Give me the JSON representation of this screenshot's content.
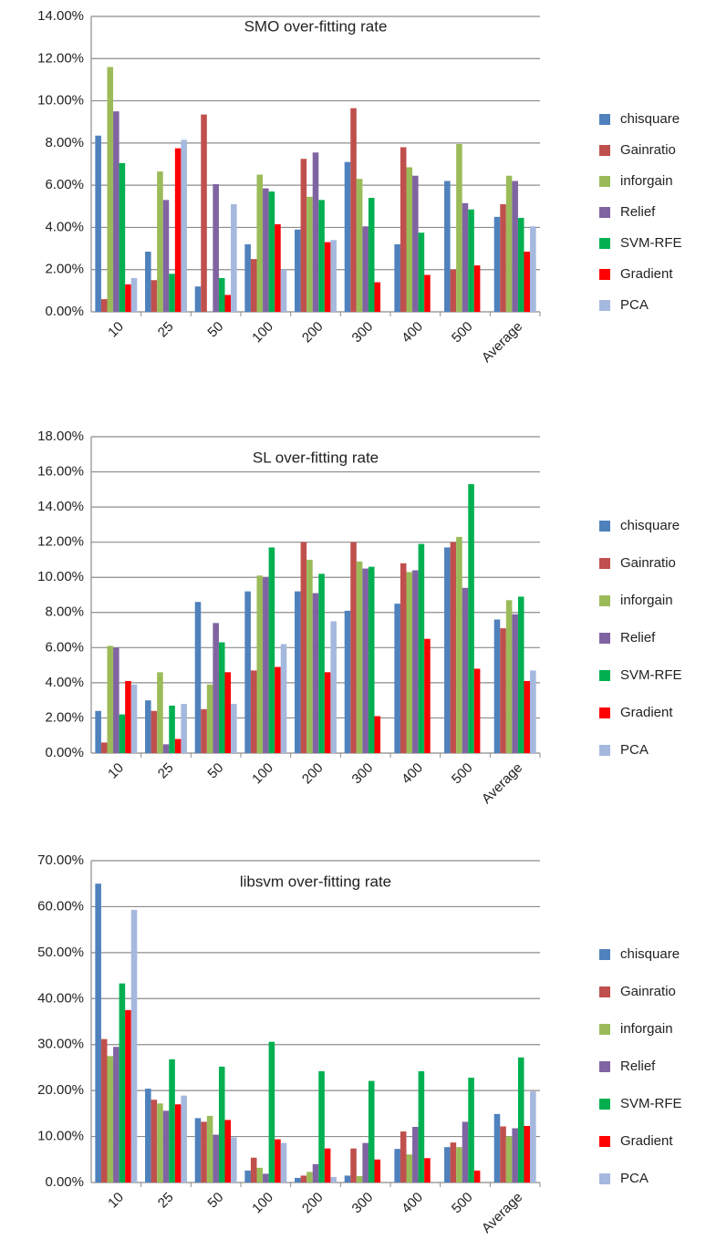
{
  "chart_data": [
    {
      "type": "bar",
      "title": "SMO over-fitting rate",
      "categories": [
        "10",
        "25",
        "50",
        "100",
        "200",
        "300",
        "400",
        "500",
        "Average"
      ],
      "series": [
        {
          "name": "chisquare",
          "color": "#4f81bd",
          "values": [
            8.35,
            2.85,
            1.2,
            3.2,
            3.9,
            7.1,
            3.2,
            6.2,
            4.5
          ]
        },
        {
          "name": "Gainratio",
          "color": "#c0504d",
          "values": [
            0.6,
            1.5,
            9.35,
            2.5,
            7.25,
            9.65,
            7.8,
            2.0,
            5.1
          ]
        },
        {
          "name": "inforgain",
          "color": "#9bbb59",
          "values": [
            11.6,
            6.65,
            0,
            6.5,
            5.45,
            6.3,
            6.85,
            7.95,
            6.45
          ]
        },
        {
          "name": "Relief",
          "color": "#8064a2",
          "values": [
            9.5,
            5.3,
            6.05,
            5.85,
            7.55,
            4.05,
            6.45,
            5.15,
            6.2
          ]
        },
        {
          "name": "SVM-RFE",
          "color": "#00b050",
          "values": [
            7.05,
            1.8,
            1.6,
            5.7,
            5.3,
            5.4,
            3.75,
            4.85,
            4.45
          ]
        },
        {
          "name": "Gradient",
          "color": "#ff0000",
          "values": [
            1.3,
            7.75,
            0.8,
            4.15,
            3.3,
            1.4,
            1.75,
            2.2,
            2.85
          ]
        },
        {
          "name": "PCA",
          "color": "#a5b8de",
          "values": [
            1.6,
            8.15,
            5.1,
            2.0,
            3.4,
            0,
            0,
            0,
            4.05
          ]
        }
      ],
      "ylim": [
        0,
        14
      ],
      "yticks": [
        {
          "value": 0,
          "label": "0.00%"
        },
        {
          "value": 2,
          "label": "2.00%"
        },
        {
          "value": 4,
          "label": "4.00%"
        },
        {
          "value": 6,
          "label": "6.00%"
        },
        {
          "value": 8,
          "label": "8.00%"
        },
        {
          "value": 10,
          "label": "10.00%"
        },
        {
          "value": 12,
          "label": "12.00%"
        },
        {
          "value": 14,
          "label": "14.00%"
        }
      ],
      "grid": true,
      "legend": "right"
    },
    {
      "type": "bar",
      "title": "SL  over-fitting rate",
      "categories": [
        "10",
        "25",
        "50",
        "100",
        "200",
        "300",
        "400",
        "500",
        "Average"
      ],
      "series": [
        {
          "name": "chisquare",
          "color": "#4f81bd",
          "values": [
            2.4,
            3.0,
            8.6,
            9.2,
            9.2,
            8.1,
            8.5,
            11.7,
            7.6
          ]
        },
        {
          "name": "Gainratio",
          "color": "#c0504d",
          "values": [
            0.6,
            2.4,
            2.5,
            4.7,
            12.0,
            12.0,
            10.8,
            12.0,
            7.1
          ]
        },
        {
          "name": "inforgain",
          "color": "#9bbb59",
          "values": [
            6.1,
            4.6,
            3.9,
            10.1,
            11.0,
            10.9,
            10.3,
            12.3,
            8.7
          ]
        },
        {
          "name": "Relief",
          "color": "#8064a2",
          "values": [
            6.0,
            0.5,
            7.4,
            10.0,
            9.1,
            10.5,
            10.4,
            9.4,
            7.9
          ]
        },
        {
          "name": "SVM-RFE",
          "color": "#00b050",
          "values": [
            2.2,
            2.7,
            6.3,
            11.7,
            10.2,
            10.6,
            11.9,
            15.3,
            8.9
          ]
        },
        {
          "name": "Gradient",
          "color": "#ff0000",
          "values": [
            4.1,
            0.8,
            4.6,
            4.9,
            4.6,
            2.1,
            6.5,
            4.8,
            4.1
          ]
        },
        {
          "name": "PCA",
          "color": "#a5b8de",
          "values": [
            3.9,
            2.8,
            2.8,
            6.2,
            7.5,
            0,
            0,
            0,
            4.7
          ]
        }
      ],
      "ylim": [
        0,
        18
      ],
      "yticks": [
        {
          "value": 0,
          "label": "0.00%"
        },
        {
          "value": 2,
          "label": "2.00%"
        },
        {
          "value": 4,
          "label": "4.00%"
        },
        {
          "value": 6,
          "label": "6.00%"
        },
        {
          "value": 8,
          "label": "8.00%"
        },
        {
          "value": 10,
          "label": "10.00%"
        },
        {
          "value": 12,
          "label": "12.00%"
        },
        {
          "value": 14,
          "label": "14.00%"
        },
        {
          "value": 16,
          "label": "16.00%"
        },
        {
          "value": 18,
          "label": "18.00%"
        }
      ],
      "grid": true,
      "legend": "right"
    },
    {
      "type": "bar",
      "title": "libsvm over-fitting rate",
      "categories": [
        "10",
        "25",
        "50",
        "100",
        "200",
        "300",
        "400",
        "500",
        "Average"
      ],
      "series": [
        {
          "name": "chisquare",
          "color": "#4f81bd",
          "values": [
            65,
            20.4,
            14,
            2.6,
            1,
            1.5,
            7.3,
            7.7,
            14.9
          ]
        },
        {
          "name": "Gainratio",
          "color": "#c0504d",
          "values": [
            31.2,
            18,
            13.2,
            5.4,
            1.5,
            7.4,
            11.1,
            8.7,
            12.2
          ]
        },
        {
          "name": "inforgain",
          "color": "#9bbb59",
          "values": [
            27.5,
            17.2,
            14.5,
            3.2,
            2.3,
            1.4,
            6.1,
            7.7,
            10
          ]
        },
        {
          "name": "Relief",
          "color": "#8064a2",
          "values": [
            29.5,
            15.6,
            10.4,
            1.9,
            4,
            8.6,
            12.1,
            13.2,
            11.8
          ]
        },
        {
          "name": "SVM-RFE",
          "color": "#00b050",
          "values": [
            43.3,
            26.8,
            25.2,
            30.6,
            24.2,
            22.1,
            24.2,
            22.8,
            27.2
          ]
        },
        {
          "name": "Gradient",
          "color": "#ff0000",
          "values": [
            37.5,
            17,
            13.6,
            9.4,
            7.4,
            5.0,
            5.3,
            2.6,
            12.3
          ]
        },
        {
          "name": "PCA",
          "color": "#a5b8de",
          "values": [
            59.3,
            18.9,
            9.8,
            8.6,
            1.2,
            0,
            0,
            0,
            19.8
          ]
        }
      ],
      "ylim": [
        0,
        70
      ],
      "yticks": [
        {
          "value": 0,
          "label": "0.00%"
        },
        {
          "value": 10,
          "label": "10.00%"
        },
        {
          "value": 20,
          "label": "20.00%"
        },
        {
          "value": 30,
          "label": "30.00%"
        },
        {
          "value": 40,
          "label": "40.00%"
        },
        {
          "value": 50,
          "label": "50.00%"
        },
        {
          "value": 60,
          "label": "60.00%"
        },
        {
          "value": 70,
          "label": "70.00%"
        }
      ],
      "grid": true,
      "legend": "right"
    }
  ]
}
